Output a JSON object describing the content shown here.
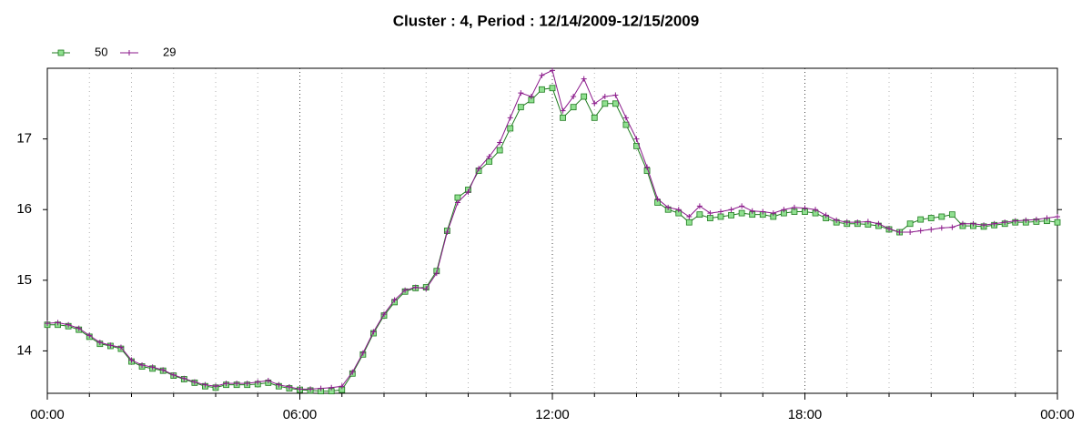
{
  "chart_data": {
    "type": "line",
    "title": "Cluster : 4, Period : 12/14/2009-12/15/2009",
    "x": [
      0,
      0.25,
      0.5,
      0.75,
      1,
      1.25,
      1.5,
      1.75,
      2,
      2.25,
      2.5,
      2.75,
      3,
      3.25,
      3.5,
      3.75,
      4,
      4.25,
      4.5,
      4.75,
      5,
      5.25,
      5.5,
      5.75,
      6,
      6.25,
      6.5,
      6.75,
      7,
      7.25,
      7.5,
      7.75,
      8,
      8.25,
      8.5,
      8.75,
      9,
      9.25,
      9.5,
      9.75,
      10,
      10.25,
      10.5,
      10.75,
      11,
      11.25,
      11.5,
      11.75,
      12,
      12.25,
      12.5,
      12.75,
      13,
      13.25,
      13.5,
      13.75,
      14,
      14.25,
      14.5,
      14.75,
      15,
      15.25,
      15.5,
      15.75,
      16,
      16.25,
      16.5,
      16.75,
      17,
      17.25,
      17.5,
      17.75,
      18,
      18.25,
      18.5,
      18.75,
      19,
      19.25,
      19.5,
      19.75,
      20,
      20.25,
      20.5,
      20.75,
      21,
      21.25,
      21.5,
      21.75,
      22,
      22.25,
      22.5,
      22.75,
      23,
      23.25,
      23.5,
      23.75,
      24
    ],
    "series": [
      {
        "name": "50",
        "color": "#1e7b1e",
        "marker": "square",
        "marker_fill": "#90e090",
        "values": [
          14.37,
          14.37,
          14.35,
          14.3,
          14.2,
          14.1,
          14.07,
          14.03,
          13.85,
          13.78,
          13.75,
          13.72,
          13.65,
          13.6,
          13.55,
          13.5,
          13.48,
          13.52,
          13.52,
          13.52,
          13.53,
          13.55,
          13.5,
          13.47,
          13.45,
          13.44,
          13.43,
          13.43,
          13.45,
          13.68,
          13.95,
          14.25,
          14.5,
          14.69,
          14.84,
          14.89,
          14.9,
          15.13,
          15.7,
          16.17,
          16.28,
          16.55,
          16.68,
          16.84,
          17.15,
          17.45,
          17.55,
          17.7,
          17.72,
          17.3,
          17.45,
          17.6,
          17.3,
          17.5,
          17.5,
          17.2,
          16.9,
          16.55,
          16.1,
          16.0,
          15.95,
          15.82,
          15.93,
          15.88,
          15.9,
          15.92,
          15.95,
          15.93,
          15.93,
          15.9,
          15.95,
          15.97,
          15.97,
          15.95,
          15.88,
          15.82,
          15.8,
          15.8,
          15.79,
          15.77,
          15.72,
          15.68,
          15.8,
          15.86,
          15.88,
          15.9,
          15.93,
          15.77,
          15.77,
          15.76,
          15.78,
          15.8,
          15.82,
          15.82,
          15.83,
          15.84,
          15.82
        ]
      },
      {
        "name": "29",
        "color": "#8b1a8b",
        "marker": "plus",
        "values": [
          14.39,
          14.4,
          14.37,
          14.32,
          14.22,
          14.12,
          14.08,
          14.05,
          13.87,
          13.8,
          13.77,
          13.73,
          13.66,
          13.61,
          13.56,
          13.52,
          13.5,
          13.54,
          13.54,
          13.54,
          13.56,
          13.58,
          13.52,
          13.49,
          13.46,
          13.46,
          13.47,
          13.48,
          13.5,
          13.7,
          13.97,
          14.27,
          14.52,
          14.72,
          14.86,
          14.9,
          14.88,
          15.1,
          15.68,
          16.1,
          16.25,
          16.58,
          16.75,
          16.95,
          17.3,
          17.65,
          17.6,
          17.9,
          17.97,
          17.4,
          17.6,
          17.85,
          17.5,
          17.6,
          17.62,
          17.3,
          17.0,
          16.6,
          16.15,
          16.03,
          16.0,
          15.9,
          16.05,
          15.95,
          15.97,
          16.0,
          16.05,
          15.98,
          15.97,
          15.95,
          16.0,
          16.03,
          16.02,
          16.0,
          15.92,
          15.85,
          15.82,
          15.82,
          15.83,
          15.8,
          15.73,
          15.68,
          15.68,
          15.7,
          15.72,
          15.74,
          15.75,
          15.8,
          15.8,
          15.78,
          15.8,
          15.82,
          15.84,
          15.85,
          15.86,
          15.88,
          15.9
        ]
      }
    ],
    "xlim": [
      0,
      24
    ],
    "xticks": [
      {
        "value": 0,
        "label": "00:00"
      },
      {
        "value": 6,
        "label": "06:00"
      },
      {
        "value": 12,
        "label": "12:00"
      },
      {
        "value": 18,
        "label": "18:00"
      },
      {
        "value": 24,
        "label": "00:00"
      }
    ],
    "xminorticks": [
      1,
      2,
      3,
      4,
      5,
      7,
      8,
      9,
      10,
      11,
      13,
      14,
      15,
      16,
      17,
      19,
      20,
      21,
      22,
      23
    ],
    "ylim": [
      13.4,
      18.0
    ],
    "yticks": [
      14,
      15,
      16,
      17
    ],
    "grid": true,
    "legend": "top-left"
  }
}
